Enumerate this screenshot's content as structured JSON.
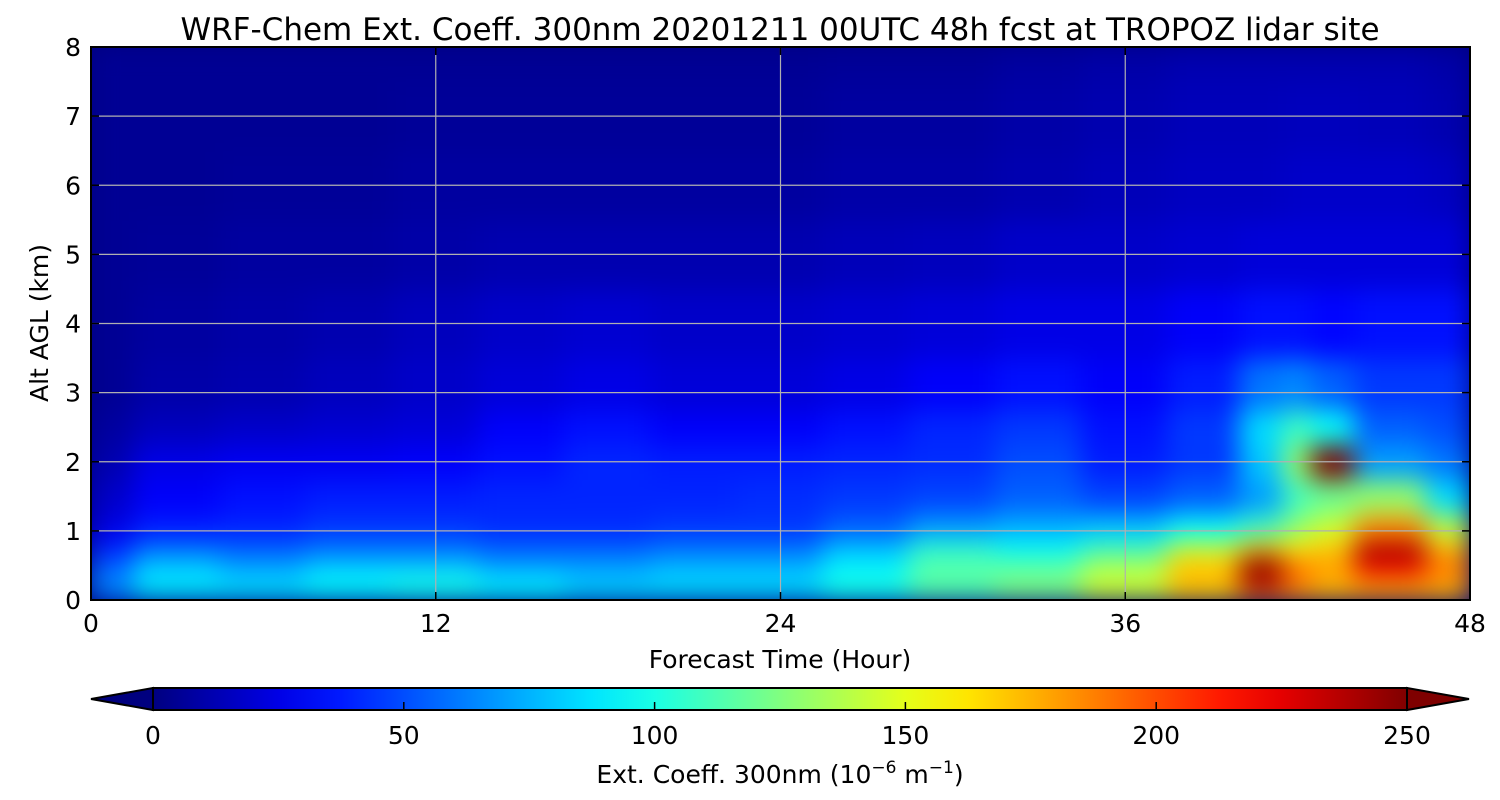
{
  "chart_data": {
    "type": "heatmap",
    "title": "WRF-Chem Ext. Coeff. 300nm 20201211 00UTC 48h fcst at TROPOZ lidar site",
    "xlabel": "Forecast Time (Hour)",
    "ylabel": "Alt AGL (km)",
    "xlim": [
      0,
      48
    ],
    "ylim": [
      0,
      8
    ],
    "x_ticks": [
      0,
      12,
      24,
      36,
      48
    ],
    "y_ticks": [
      0,
      1,
      2,
      3,
      4,
      5,
      6,
      7,
      8
    ],
    "grid": true,
    "colormap": "jet",
    "colorbar": {
      "orientation": "horizontal",
      "placement": "bottom",
      "label": "Ext. Coeff. 300nm  (10",
      "label_exp1": "−6",
      "label_mid": " m",
      "label_exp2": "−1",
      "label_end": ")",
      "range": [
        0,
        250
      ],
      "ticks": [
        0,
        50,
        100,
        150,
        200,
        250
      ],
      "extend": "both"
    },
    "x": [
      0,
      3,
      6,
      9,
      12,
      15,
      18,
      21,
      24,
      27,
      30,
      33,
      36,
      39,
      41,
      42,
      43,
      45,
      48
    ],
    "y": [
      0,
      0.25,
      0.5,
      0.75,
      1,
      1.5,
      2,
      2.5,
      3,
      4,
      5,
      6,
      7,
      8
    ],
    "z": [
      [
        60,
        80,
        85,
        85,
        90,
        90,
        85,
        80,
        80,
        95,
        110,
        120,
        140,
        160,
        170,
        175,
        175,
        175,
        170
      ],
      [
        65,
        90,
        85,
        95,
        100,
        90,
        80,
        85,
        85,
        100,
        115,
        125,
        145,
        175,
        235,
        190,
        175,
        185,
        180
      ],
      [
        55,
        80,
        70,
        80,
        80,
        70,
        70,
        75,
        75,
        90,
        115,
        115,
        135,
        170,
        250,
        190,
        180,
        225,
        190
      ],
      [
        40,
        60,
        55,
        60,
        60,
        55,
        55,
        60,
        60,
        80,
        105,
        95,
        110,
        145,
        175,
        160,
        170,
        240,
        175
      ],
      [
        25,
        38,
        40,
        45,
        45,
        42,
        42,
        45,
        45,
        55,
        70,
        75,
        80,
        95,
        110,
        130,
        145,
        185,
        140
      ],
      [
        18,
        30,
        35,
        38,
        38,
        40,
        40,
        40,
        42,
        45,
        48,
        55,
        48,
        55,
        70,
        110,
        120,
        130,
        85
      ],
      [
        12,
        25,
        28,
        28,
        30,
        35,
        40,
        38,
        38,
        40,
        42,
        50,
        38,
        45,
        80,
        130,
        250,
        70,
        60
      ],
      [
        8,
        15,
        18,
        20,
        22,
        30,
        35,
        30,
        30,
        35,
        40,
        45,
        35,
        45,
        85,
        110,
        95,
        55,
        50
      ],
      [
        5,
        10,
        12,
        15,
        18,
        22,
        25,
        22,
        22,
        25,
        30,
        35,
        30,
        38,
        60,
        65,
        55,
        45,
        45
      ],
      [
        5,
        8,
        10,
        12,
        15,
        18,
        20,
        18,
        18,
        20,
        22,
        25,
        25,
        30,
        35,
        35,
        32,
        35,
        35
      ],
      [
        5,
        6,
        8,
        8,
        10,
        12,
        12,
        12,
        12,
        14,
        15,
        18,
        18,
        20,
        22,
        22,
        22,
        22,
        22
      ],
      [
        5,
        5,
        6,
        6,
        8,
        8,
        8,
        8,
        8,
        10,
        10,
        12,
        14,
        16,
        16,
        18,
        18,
        18,
        16
      ],
      [
        5,
        5,
        5,
        5,
        6,
        6,
        6,
        6,
        6,
        8,
        8,
        10,
        12,
        14,
        14,
        15,
        15,
        14,
        12
      ],
      [
        5,
        5,
        5,
        5,
        5,
        5,
        5,
        5,
        5,
        6,
        6,
        8,
        10,
        12,
        12,
        12,
        12,
        12,
        10
      ]
    ]
  }
}
